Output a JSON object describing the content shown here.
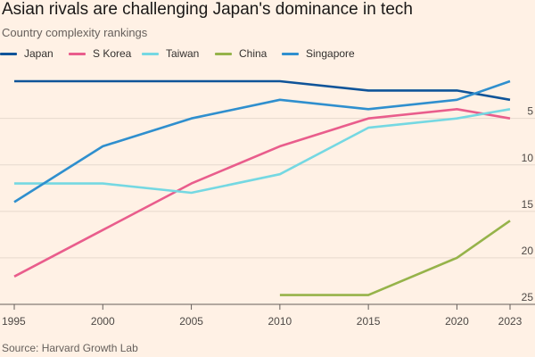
{
  "title": "Asian rivals are challenging Japan's dominance in tech",
  "subtitle": "Country complexity rankings",
  "source": "Source: Harvard Growth Lab",
  "chart_data": {
    "type": "line",
    "title": "Asian rivals are challenging Japan's dominance in tech",
    "subtitle": "Country complexity rankings",
    "xlabel": "",
    "ylabel": "",
    "x": [
      1995,
      2000,
      2005,
      2010,
      2015,
      2020,
      2023
    ],
    "x_tick_labels": [
      "1995",
      "2000",
      "2005",
      "2010",
      "2015",
      "2020",
      "2023"
    ],
    "y_ticks": [
      5,
      10,
      15,
      20,
      25
    ],
    "y_tick_labels": [
      "5",
      "10",
      "15",
      "20",
      "25"
    ],
    "ylim": [
      1,
      25
    ],
    "y_inverted": true,
    "grid": "horizontal",
    "legend_position": "top-left",
    "series": [
      {
        "name": "Japan",
        "color": "#0f5499",
        "values": [
          1,
          1,
          1,
          1,
          2,
          2,
          3
        ]
      },
      {
        "name": "S Korea",
        "color": "#e95d8c",
        "values": [
          22,
          17,
          12,
          8,
          5,
          4,
          5
        ]
      },
      {
        "name": "Taiwan",
        "color": "#75d8e2",
        "values": [
          12,
          12,
          13,
          11,
          6,
          5,
          4
        ]
      },
      {
        "name": "China",
        "color": "#96b34a",
        "values": [
          null,
          null,
          null,
          24,
          24,
          20,
          16
        ]
      },
      {
        "name": "Singapore",
        "color": "#2f8fce",
        "values": [
          14,
          8,
          5,
          3,
          4,
          3,
          1
        ]
      }
    ]
  }
}
